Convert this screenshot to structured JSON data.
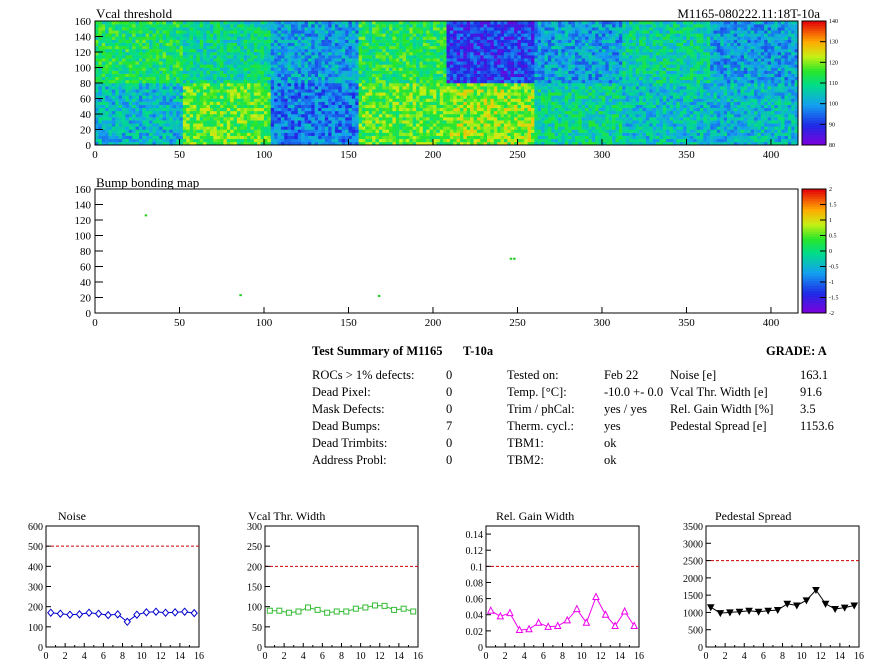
{
  "header": {
    "vcal_title": "Vcal threshold",
    "module_id": "M1165-080222.11:18T-10a",
    "bump_title": "Bump bonding map"
  },
  "summary": {
    "title": "Test Summary of M1165",
    "temp_tag": "T-10a",
    "grade": "GRADE:  A",
    "left": [
      {
        "label": "ROCs > 1% defects:",
        "value": "0"
      },
      {
        "label": "Dead Pixel:",
        "value": "0"
      },
      {
        "label": "Mask Defects:",
        "value": "0"
      },
      {
        "label": "Dead Bumps:",
        "value": "7"
      },
      {
        "label": "Dead Trimbits:",
        "value": "0"
      },
      {
        "label": "Address Probl:",
        "value": "0"
      }
    ],
    "mid": [
      {
        "label": "Tested on:",
        "value": "Feb 22"
      },
      {
        "label": "Temp. [°C]:",
        "value": "-10.0 +- 0.0"
      },
      {
        "label": "Trim / phCal:",
        "value": "yes / yes"
      },
      {
        "label": "Therm. cycl.:",
        "value": "yes"
      },
      {
        "label": "TBM1:",
        "value": "ok"
      },
      {
        "label": "TBM2:",
        "value": "ok"
      }
    ],
    "right": [
      {
        "label": "Noise [e]",
        "value": "163.1"
      },
      {
        "label": "Vcal Thr. Width [e]",
        "value": "91.6"
      },
      {
        "label": "Rel. Gain Width [%]",
        "value": "3.5"
      },
      {
        "label": "Pedestal Spread [e]",
        "value": "1153.6"
      }
    ]
  },
  "chart_data": [
    {
      "type": "heatmap",
      "title": "Vcal threshold",
      "x_ticks": [
        "0",
        "50",
        "100",
        "150",
        "200",
        "250",
        "300",
        "350",
        "400"
      ],
      "y_ticks": [
        "0",
        "20",
        "40",
        "60",
        "80",
        "100",
        "120",
        "140",
        "160"
      ],
      "xlim": [
        0,
        416
      ],
      "ylim": [
        0,
        160
      ],
      "colorbar": {
        "min": 80,
        "max": 140,
        "ticks": [
          "80",
          "90",
          "100",
          "110",
          "120",
          "130",
          "140"
        ]
      },
      "roc_means": {
        "top": [
          112,
          108,
          100,
          113,
          90,
          100,
          107,
          100
        ],
        "bottom": [
          103,
          117,
          96,
          117,
          120,
          108,
          104,
          103
        ]
      }
    },
    {
      "type": "heatmap",
      "title": "Bump bonding map",
      "x_ticks": [
        "0",
        "50",
        "100",
        "150",
        "200",
        "250",
        "300",
        "350",
        "400"
      ],
      "y_ticks": [
        "0",
        "20",
        "40",
        "60",
        "80",
        "100",
        "120",
        "140",
        "160"
      ],
      "xlim": [
        0,
        416
      ],
      "ylim": [
        0,
        160
      ],
      "colorbar": {
        "min": -2,
        "max": 2,
        "ticks": [
          "-2",
          "-1.5",
          "-1",
          "-0.5",
          "0",
          "0.5",
          "1",
          "1.5",
          "2"
        ]
      },
      "points": [
        [
          30,
          126
        ],
        [
          86,
          23
        ],
        [
          168,
          22
        ],
        [
          246,
          70
        ],
        [
          248,
          70
        ]
      ]
    },
    {
      "type": "line",
      "title": "Noise",
      "x": [
        0,
        1,
        2,
        3,
        4,
        5,
        6,
        7,
        8,
        9,
        10,
        11,
        12,
        13,
        14,
        15
      ],
      "values": [
        170,
        165,
        160,
        162,
        170,
        165,
        158,
        162,
        125,
        160,
        172,
        175,
        170,
        172,
        175,
        168
      ],
      "xlim": [
        0,
        16
      ],
      "ylim": [
        0,
        600
      ],
      "limit": 500,
      "x_ticks": [
        "0",
        "2",
        "4",
        "6",
        "8",
        "10",
        "12",
        "14",
        "16"
      ],
      "y_ticks": [
        "0",
        "100",
        "200",
        "300",
        "400",
        "500",
        "600"
      ],
      "color": "#0000cc",
      "marker": "diamond"
    },
    {
      "type": "line",
      "title": "Vcal Thr. Width",
      "x": [
        0,
        1,
        2,
        3,
        4,
        5,
        6,
        7,
        8,
        9,
        10,
        11,
        12,
        13,
        14,
        15
      ],
      "values": [
        90,
        90,
        85,
        88,
        98,
        92,
        85,
        88,
        88,
        95,
        98,
        103,
        102,
        92,
        95,
        88
      ],
      "xlim": [
        0,
        16
      ],
      "ylim": [
        0,
        300
      ],
      "limit": 200,
      "x_ticks": [
        "0",
        "2",
        "4",
        "6",
        "8",
        "10",
        "12",
        "14",
        "16"
      ],
      "y_ticks": [
        "0",
        "50",
        "100",
        "150",
        "200",
        "250",
        "300"
      ],
      "color": "#33bb33",
      "marker": "square"
    },
    {
      "type": "line",
      "title": "Rel. Gain Width",
      "x": [
        0,
        1,
        2,
        3,
        4,
        5,
        6,
        7,
        8,
        9,
        10,
        11,
        12,
        13,
        14,
        15
      ],
      "values": [
        0.045,
        0.038,
        0.042,
        0.021,
        0.022,
        0.03,
        0.025,
        0.026,
        0.033,
        0.047,
        0.03,
        0.062,
        0.04,
        0.026,
        0.044,
        0.026
      ],
      "xlim": [
        0,
        16
      ],
      "ylim": [
        0,
        0.15
      ],
      "limit": 0.1,
      "x_ticks": [
        "0",
        "2",
        "4",
        "6",
        "8",
        "10",
        "12",
        "14",
        "16"
      ],
      "y_ticks": [
        "0",
        "0.02",
        "0.04",
        "0.06",
        "0.08",
        "0.1",
        "0.12",
        "0.14"
      ],
      "color": "#ee00ee",
      "marker": "triangle"
    },
    {
      "type": "line",
      "title": "Pedestal Spread",
      "x": [
        0,
        1,
        2,
        3,
        4,
        5,
        6,
        7,
        8,
        9,
        10,
        11,
        12,
        13,
        14,
        15
      ],
      "values": [
        1150,
        980,
        1000,
        1020,
        1050,
        1020,
        1050,
        1070,
        1250,
        1200,
        1350,
        1650,
        1250,
        1100,
        1140,
        1200
      ],
      "xlim": [
        0,
        16
      ],
      "ylim": [
        0,
        3500
      ],
      "limit": 2500,
      "x_ticks": [
        "0",
        "2",
        "4",
        "6",
        "8",
        "10",
        "12",
        "14",
        "16"
      ],
      "y_ticks": [
        "0",
        "500",
        "1000",
        "1500",
        "2000",
        "2500",
        "3000",
        "3500"
      ],
      "color": "#000000",
      "marker": "triangle-down"
    }
  ]
}
